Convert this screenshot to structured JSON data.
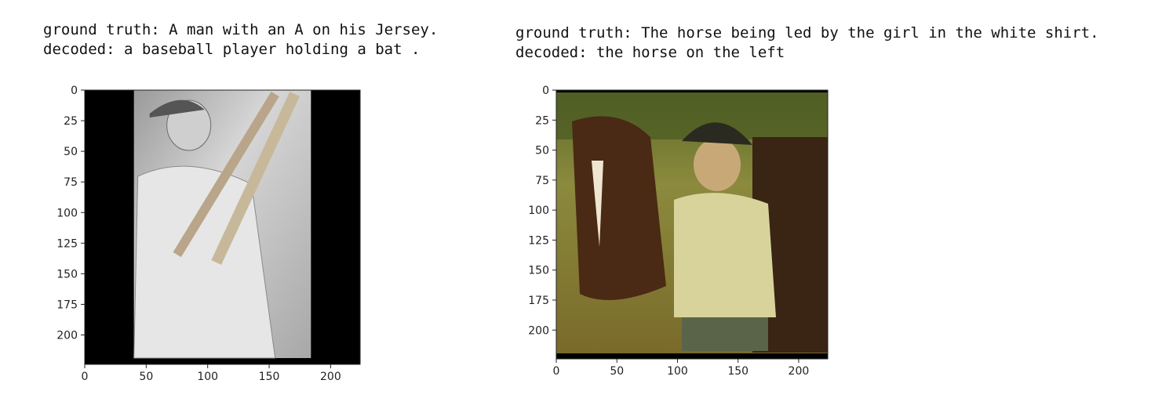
{
  "panels": [
    {
      "caption": {
        "ground_truth": "ground truth: A man with an A on his Jersey.",
        "decoded": "decoded: a baseball player holding a bat ."
      },
      "image_description": "grayscale photo of baseball player with bats"
    },
    {
      "caption": {
        "ground_truth": "ground truth: The horse being led by the girl in the white shirt.",
        "decoded": "decoded: the horse on the left"
      },
      "image_description": "photo of a girl in a cap leading a brown horse"
    }
  ],
  "chart_data": [
    {
      "type": "image",
      "xlim": [
        0,
        224
      ],
      "ylim": [
        224,
        0
      ],
      "x_ticks": [
        "0",
        "50",
        "100",
        "150",
        "200"
      ],
      "y_ticks": [
        "0",
        "25",
        "50",
        "75",
        "100",
        "125",
        "150",
        "175",
        "200"
      ],
      "image_extent_x": [
        40,
        184
      ],
      "colors": {
        "background": "#000000",
        "image_tone": "#b8b8b8"
      }
    },
    {
      "type": "image",
      "xlim": [
        0,
        224
      ],
      "ylim": [
        224,
        0
      ],
      "x_ticks": [
        "0",
        "50",
        "100",
        "150",
        "200"
      ],
      "y_ticks": [
        "0",
        "25",
        "50",
        "75",
        "100",
        "125",
        "150",
        "175",
        "200"
      ],
      "image_extent_x": [
        0,
        224
      ],
      "colors": {
        "background": "#000000",
        "image_tone": "#8a7a3a"
      }
    }
  ]
}
